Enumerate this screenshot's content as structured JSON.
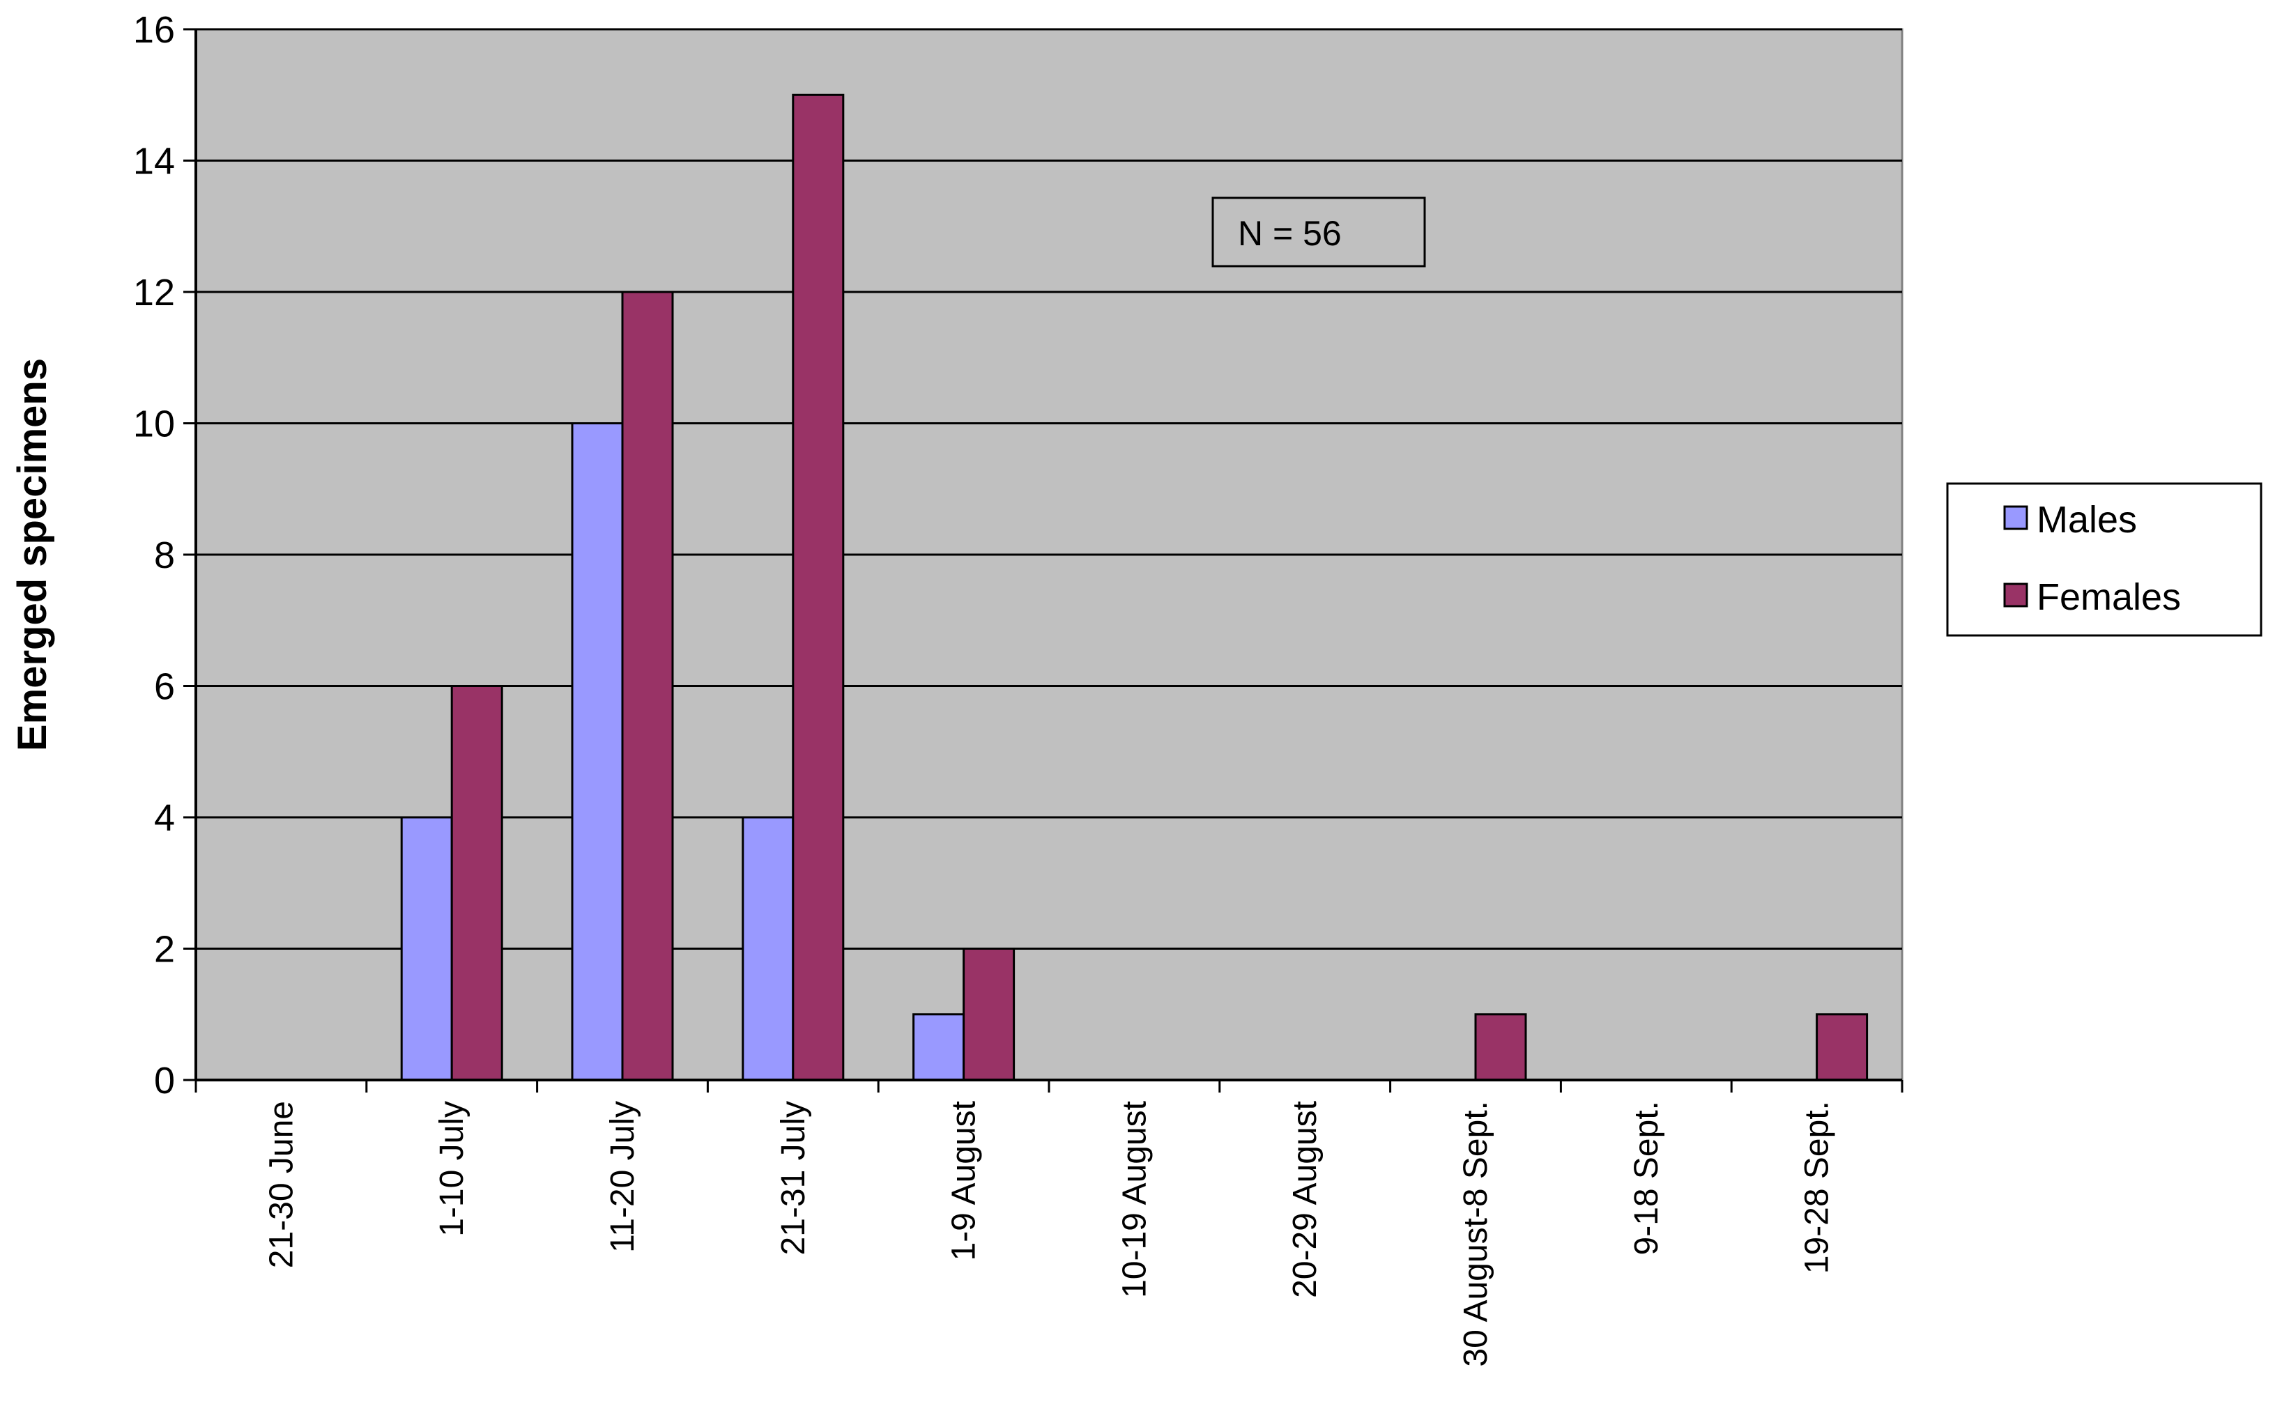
{
  "chart_data": {
    "type": "bar",
    "title": "",
    "xlabel": "",
    "ylabel": "Emerged specimens",
    "ylim": [
      0,
      16
    ],
    "yticks": [
      0,
      2,
      4,
      6,
      8,
      10,
      12,
      14,
      16
    ],
    "grid": true,
    "categories": [
      "21-30 June",
      "1-10 July",
      "11-20 July",
      "21-31 July",
      "1-9 August",
      "10-19 August",
      "20-29 August",
      "30 August-8 Sept.",
      "9-18 Sept.",
      "19-28 Sept."
    ],
    "series": [
      {
        "name": "Males",
        "values": [
          0,
          4,
          10,
          4,
          1,
          0,
          0,
          0,
          0,
          0
        ]
      },
      {
        "name": "Females",
        "values": [
          0,
          6,
          12,
          15,
          2,
          0,
          0,
          1,
          0,
          1
        ]
      }
    ],
    "annotation": "N = 56",
    "legend_position": "right",
    "colors": {
      "males": "#9999ff",
      "females": "#993366",
      "plot_background": "#c0c0c0",
      "gridline": "#000000"
    }
  }
}
